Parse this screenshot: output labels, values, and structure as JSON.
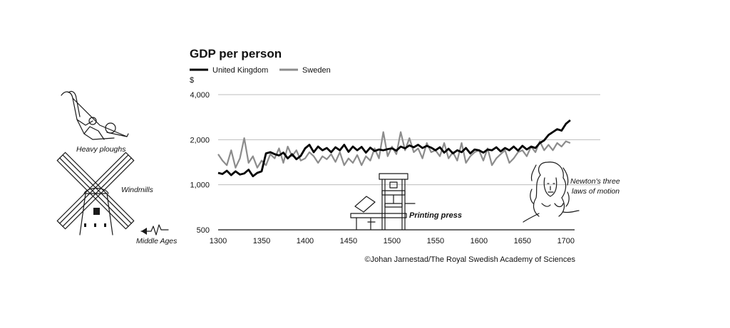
{
  "chart_data": {
    "type": "line",
    "title": "GDP per person",
    "ylabel": "$",
    "xlabel": "",
    "y_scale": "log",
    "ylim": [
      500,
      4000
    ],
    "xlim": [
      1300,
      1710
    ],
    "x_ticks": [
      "1300",
      "1350",
      "1400",
      "1450",
      "1500",
      "1550",
      "1600",
      "1650",
      "1700"
    ],
    "y_ticks": [
      "500",
      "1,000",
      "2,000",
      "4,000"
    ],
    "grid": "horizontal",
    "legend_position": "top-left",
    "series": [
      {
        "name": "United Kingdom",
        "color": "#000000",
        "x": [
          1300,
          1305,
          1310,
          1315,
          1320,
          1325,
          1330,
          1335,
          1340,
          1345,
          1350,
          1355,
          1360,
          1365,
          1370,
          1375,
          1380,
          1385,
          1390,
          1395,
          1400,
          1405,
          1410,
          1415,
          1420,
          1425,
          1430,
          1435,
          1440,
          1445,
          1450,
          1455,
          1460,
          1465,
          1470,
          1475,
          1480,
          1485,
          1490,
          1495,
          1500,
          1505,
          1510,
          1515,
          1520,
          1525,
          1530,
          1535,
          1540,
          1545,
          1550,
          1555,
          1560,
          1565,
          1570,
          1575,
          1580,
          1585,
          1590,
          1595,
          1600,
          1605,
          1610,
          1615,
          1620,
          1625,
          1630,
          1635,
          1640,
          1645,
          1650,
          1655,
          1660,
          1665,
          1670,
          1675,
          1680,
          1685,
          1690,
          1695,
          1700,
          1705
        ],
        "values": [
          1200,
          1180,
          1240,
          1160,
          1230,
          1170,
          1190,
          1260,
          1140,
          1200,
          1230,
          1620,
          1650,
          1600,
          1570,
          1640,
          1500,
          1600,
          1480,
          1560,
          1750,
          1850,
          1650,
          1800,
          1700,
          1760,
          1650,
          1780,
          1700,
          1850,
          1660,
          1800,
          1700,
          1790,
          1640,
          1770,
          1680,
          1720,
          1700,
          1730,
          1750,
          1690,
          1800,
          1750,
          1830,
          1780,
          1850,
          1760,
          1820,
          1770,
          1700,
          1780,
          1640,
          1740,
          1620,
          1700,
          1650,
          1760,
          1620,
          1720,
          1700,
          1640,
          1720,
          1700,
          1780,
          1670,
          1760,
          1700,
          1800,
          1690,
          1820,
          1720,
          1800,
          1760,
          1900,
          1980,
          2150,
          2250,
          2350,
          2300,
          2550,
          2700
        ]
      },
      {
        "name": "Sweden",
        "color": "#8c8c8c",
        "x": [
          1300,
          1305,
          1310,
          1315,
          1320,
          1325,
          1330,
          1335,
          1340,
          1345,
          1350,
          1355,
          1360,
          1365,
          1370,
          1375,
          1380,
          1385,
          1390,
          1395,
          1400,
          1405,
          1410,
          1415,
          1420,
          1425,
          1430,
          1435,
          1440,
          1445,
          1450,
          1455,
          1460,
          1465,
          1470,
          1475,
          1480,
          1485,
          1490,
          1495,
          1500,
          1505,
          1510,
          1515,
          1520,
          1525,
          1530,
          1535,
          1540,
          1545,
          1550,
          1555,
          1560,
          1565,
          1570,
          1575,
          1580,
          1585,
          1590,
          1595,
          1600,
          1605,
          1610,
          1615,
          1620,
          1625,
          1630,
          1635,
          1640,
          1645,
          1650,
          1655,
          1660,
          1665,
          1670,
          1675,
          1680,
          1685,
          1690,
          1695,
          1700,
          1705
        ],
        "values": [
          1600,
          1450,
          1350,
          1700,
          1300,
          1500,
          2050,
          1400,
          1550,
          1300,
          1450,
          1350,
          1600,
          1500,
          1750,
          1400,
          1800,
          1550,
          1700,
          1450,
          1500,
          1650,
          1550,
          1400,
          1550,
          1480,
          1600,
          1420,
          1650,
          1350,
          1500,
          1400,
          1580,
          1350,
          1550,
          1450,
          1750,
          1500,
          2250,
          1550,
          1800,
          1600,
          2250,
          1700,
          2050,
          1650,
          1750,
          1500,
          1900,
          1650,
          1700,
          1550,
          1900,
          1500,
          1650,
          1450,
          1900,
          1400,
          1550,
          1650,
          1700,
          1450,
          1750,
          1350,
          1500,
          1600,
          1700,
          1400,
          1500,
          1650,
          1700,
          1550,
          1800,
          1650,
          1950,
          1700,
          1850,
          1700,
          1900,
          1800,
          1950,
          1900
        ]
      }
    ],
    "annotations": [
      "Heavy ploughs",
      "Windmills",
      "Middle Ages",
      "Printing press",
      "Newton's three laws of motion"
    ]
  },
  "annotations": {
    "heavy_ploughs": "Heavy ploughs",
    "windmills": "Windmills",
    "middle_ages": "Middle Ages",
    "printing_press": "Printing press",
    "newton_line1": "Newton's three",
    "newton_line2": "laws of motion"
  },
  "credit": "©Johan Jarnestad/The Royal Swedish Academy of Sciences"
}
